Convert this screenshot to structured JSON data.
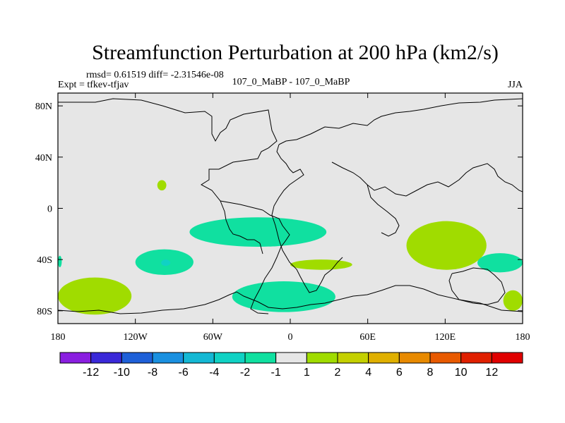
{
  "chart_data": {
    "type": "heatmap",
    "title": "Streamfunction Perturbation at 200 hPa (km2/s)",
    "stats_label": "rmsd= 0.61519 diff= -2.31546e-08",
    "experiment_label": "Expt = tfkev-tfjav",
    "subtitle": "107_0_MaBP - 107_0_MaBP",
    "season": "JJA",
    "x_ticks": [
      "180",
      "120W",
      "60W",
      "0",
      "60E",
      "120E",
      "180"
    ],
    "y_ticks": [
      "80N",
      "40N",
      "0",
      "40S",
      "80S"
    ],
    "xlim": [
      -180,
      180
    ],
    "ylim": [
      -90,
      90
    ],
    "grid": false,
    "legend_position": "bottom",
    "background_value_range": [
      -1,
      1
    ],
    "colorbar": {
      "labels": [
        "-12",
        "-10",
        "-8",
        "-6",
        "-4",
        "-2",
        "-1",
        "1",
        "2",
        "4",
        "6",
        "8",
        "10",
        "12"
      ],
      "colors": [
        "#8a1ee0",
        "#3a28d8",
        "#1e60d8",
        "#1a90e0",
        "#14b8d4",
        "#10d2c4",
        "#10e0a0",
        "#e6e6e6",
        "#a0dc00",
        "#c4d000",
        "#e0b000",
        "#e88a00",
        "#e85a00",
        "#e02000",
        "#e00000"
      ]
    },
    "anomaly_regions": [
      {
        "category": "1 to 2",
        "color": "#a0dc00",
        "lon": [
          -180,
          -123
        ],
        "lat": [
          -83,
          -54
        ]
      },
      {
        "category": "1 to 2",
        "color": "#a0dc00",
        "lon": [
          -103,
          -96
        ],
        "lat": [
          14,
          22
        ]
      },
      {
        "category": "1 to 2",
        "color": "#a0dc00",
        "lon": [
          0,
          48
        ],
        "lat": [
          -48,
          -40
        ]
      },
      {
        "category": "1 to 2",
        "color": "#a0dc00",
        "lon": [
          90,
          152
        ],
        "lat": [
          -48,
          -10
        ]
      },
      {
        "category": "1 to 2",
        "color": "#a0dc00",
        "lon": [
          165,
          180
        ],
        "lat": [
          -80,
          -64
        ]
      },
      {
        "category": "-2 to -1",
        "color": "#10e0a0",
        "lon": [
          -180,
          -177
        ],
        "lat": [
          -46,
          -37
        ]
      },
      {
        "category": "-2 to -1",
        "color": "#10e0a0",
        "lon": [
          -120,
          -75
        ],
        "lat": [
          -52,
          -32
        ]
      },
      {
        "category": "-4 to -2",
        "color": "#10d2c4",
        "lon": [
          -100,
          -93
        ],
        "lat": [
          -45,
          -40
        ]
      },
      {
        "category": "-2 to -1",
        "color": "#10e0a0",
        "lon": [
          -78,
          28
        ],
        "lat": [
          -30,
          -7
        ]
      },
      {
        "category": "-2 to -1",
        "color": "#10e0a0",
        "lon": [
          -45,
          35
        ],
        "lat": [
          -81,
          -57
        ]
      },
      {
        "category": "-2 to -1",
        "color": "#10e0a0",
        "lon": [
          145,
          180
        ],
        "lat": [
          -50,
          -35
        ]
      }
    ]
  }
}
